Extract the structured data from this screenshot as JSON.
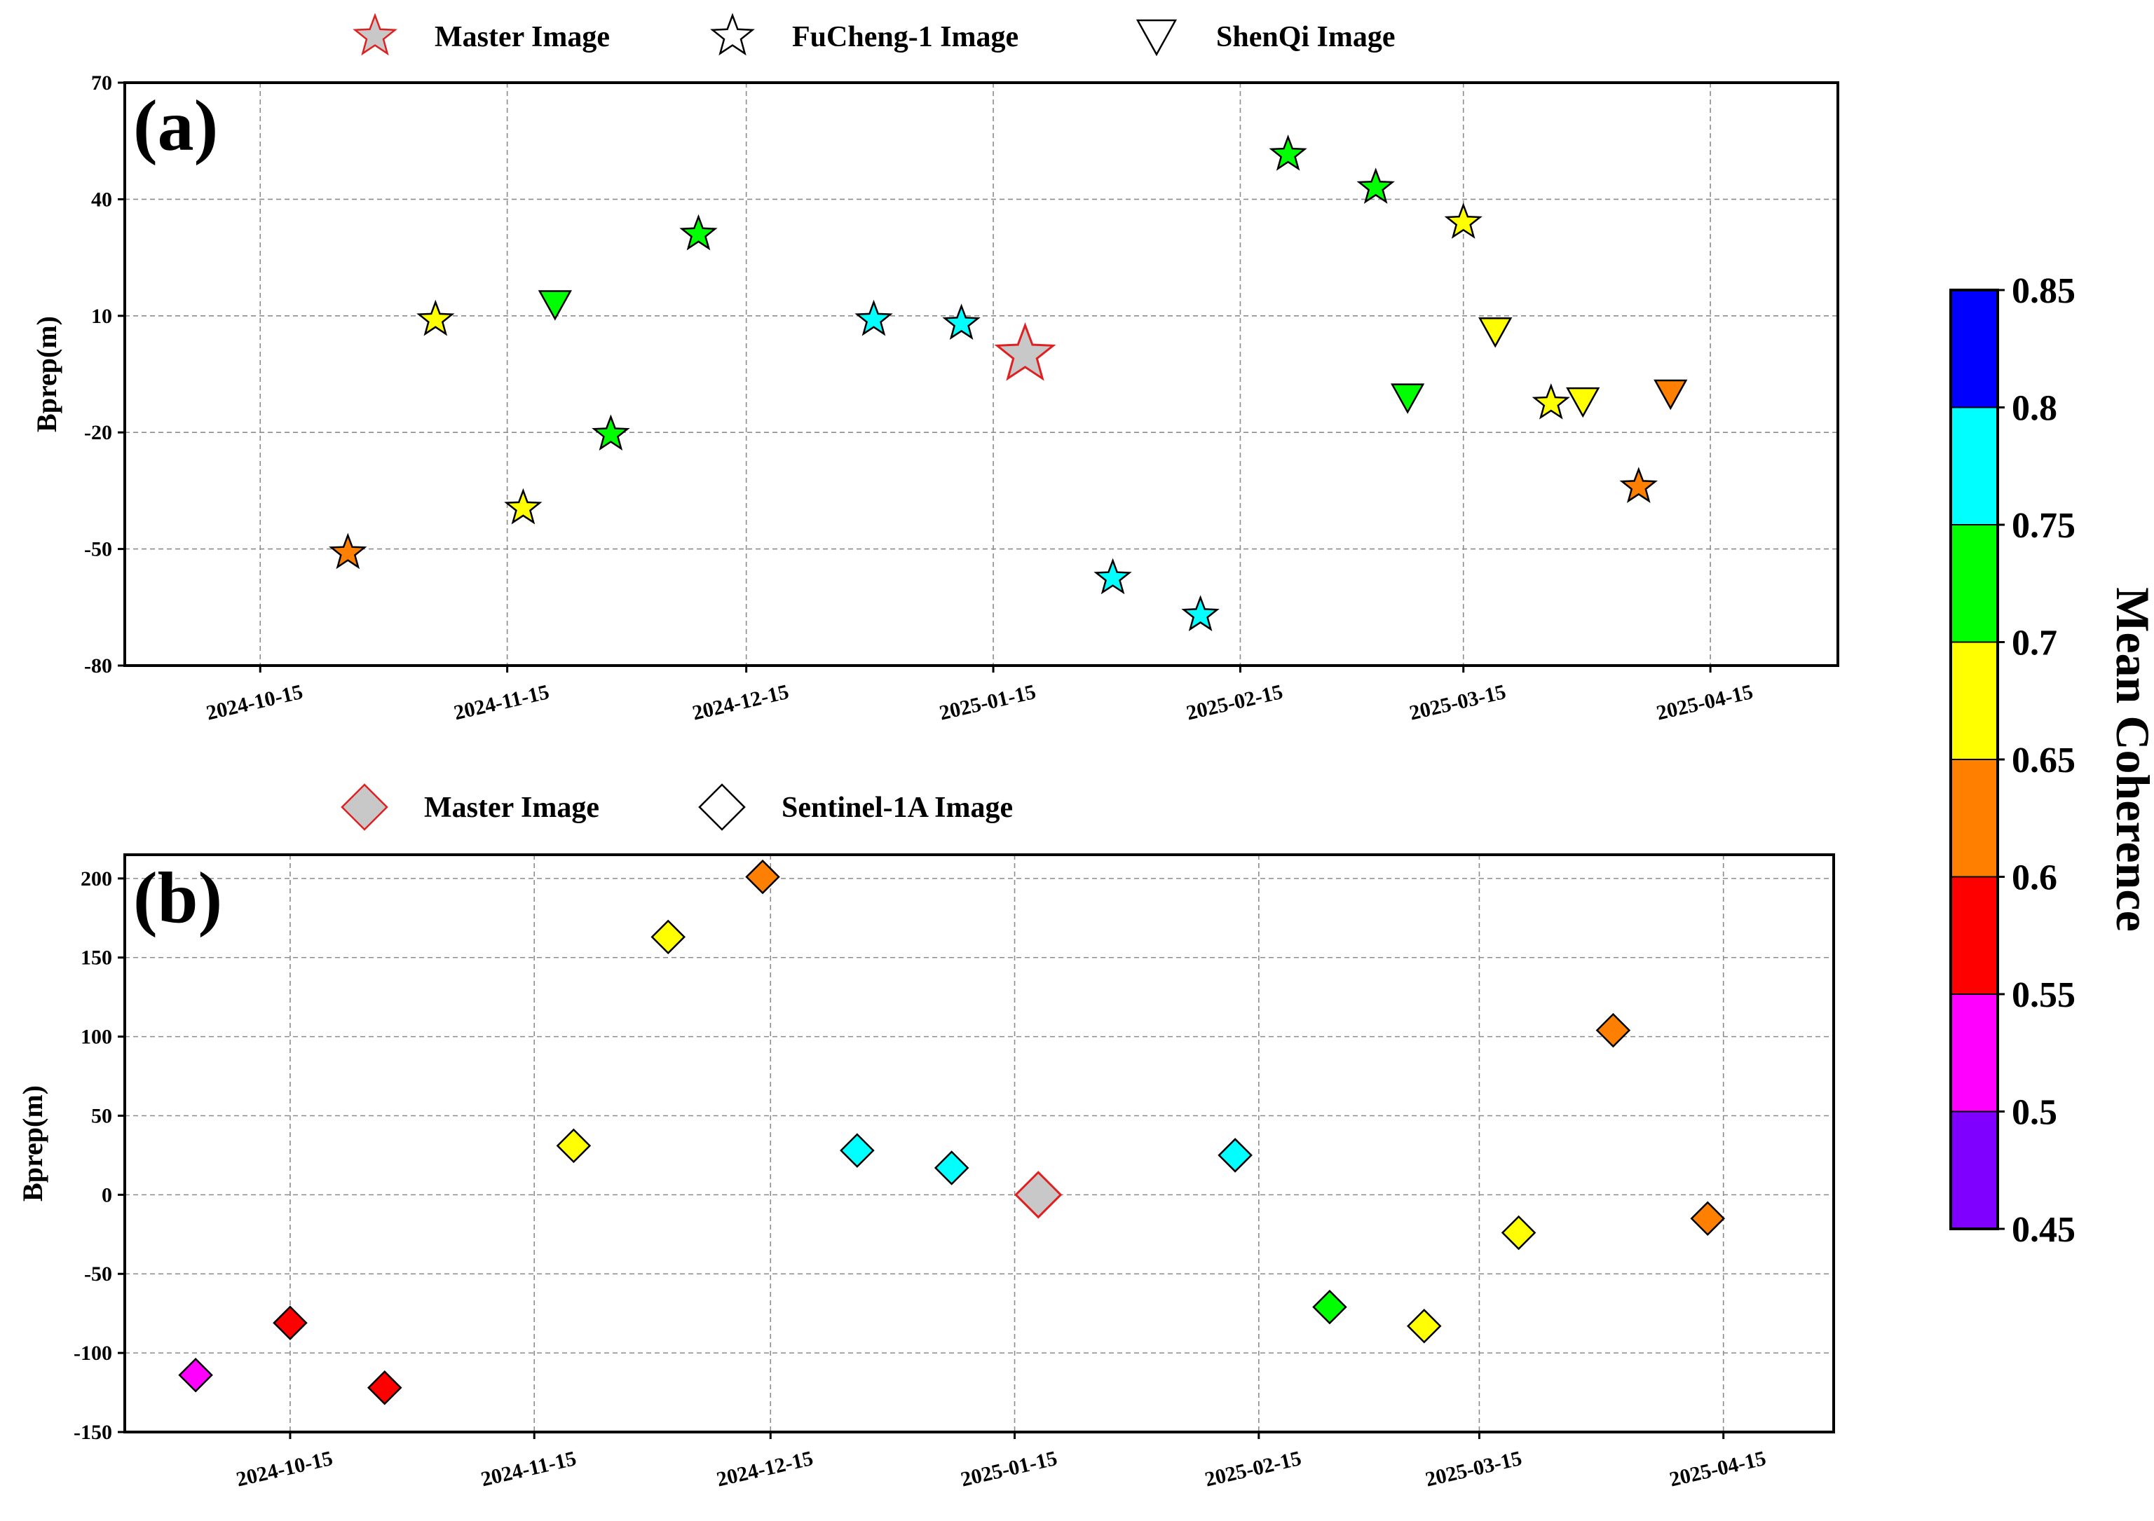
{
  "chart_data": [
    {
      "panel": "(a)",
      "type": "scatter",
      "ylabel": "Bprep(m)",
      "xlabel": "",
      "ylim": [
        -80,
        70
      ],
      "yticks": [
        -80,
        -50,
        -20,
        10,
        40,
        70
      ],
      "xlim": [
        "2024-09-28",
        "2025-05-01"
      ],
      "xticks": [
        "2024-10-15",
        "2024-11-15",
        "2024-12-15",
        "2025-01-15",
        "2025-02-15",
        "2025-03-15",
        "2025-04-15"
      ],
      "grid": true,
      "legend": [
        {
          "label": "Master Image",
          "marker": "star",
          "fill": "#c8c8c8",
          "stroke": "#e02020"
        },
        {
          "label": "FuCheng-1 Image",
          "marker": "star",
          "fill": "#ffffff",
          "stroke": "#000000"
        },
        {
          "label": "ShenQi Image",
          "marker": "triangle-down",
          "fill": "#ffffff",
          "stroke": "#000000"
        }
      ],
      "series": [
        {
          "name": "Master Image",
          "marker": "star",
          "points": [
            {
              "date": "2025-01-19",
              "y": 0,
              "coherence": null
            }
          ]
        },
        {
          "name": "FuCheng-1 Image",
          "marker": "star",
          "points": [
            {
              "date": "2024-10-26",
              "y": -51,
              "coherence": 0.63
            },
            {
              "date": "2024-11-06",
              "y": 9,
              "coherence": 0.68
            },
            {
              "date": "2024-11-17",
              "y": -39.5,
              "coherence": 0.68
            },
            {
              "date": "2024-11-28",
              "y": -20.5,
              "coherence": 0.73
            },
            {
              "date": "2024-12-09",
              "y": 31,
              "coherence": 0.73
            },
            {
              "date": "2024-12-31",
              "y": 9,
              "coherence": 0.78
            },
            {
              "date": "2025-01-11",
              "y": 8,
              "coherence": 0.78
            },
            {
              "date": "2025-01-30",
              "y": -57.5,
              "coherence": 0.78
            },
            {
              "date": "2025-02-10",
              "y": -67,
              "coherence": 0.78
            },
            {
              "date": "2025-02-21",
              "y": 51.5,
              "coherence": 0.73
            },
            {
              "date": "2025-03-04",
              "y": 43,
              "coherence": 0.73
            },
            {
              "date": "2025-03-15",
              "y": 34,
              "coherence": 0.68
            },
            {
              "date": "2025-03-26",
              "y": -12.5,
              "coherence": 0.68
            },
            {
              "date": "2025-04-06",
              "y": -34,
              "coherence": 0.63
            }
          ]
        },
        {
          "name": "ShenQi Image",
          "marker": "triangle-down",
          "points": [
            {
              "date": "2024-11-21",
              "y": 13,
              "coherence": 0.73
            },
            {
              "date": "2025-03-08",
              "y": -11,
              "coherence": 0.73
            },
            {
              "date": "2025-03-19",
              "y": 6,
              "coherence": 0.68
            },
            {
              "date": "2025-03-30",
              "y": -12,
              "coherence": 0.68
            },
            {
              "date": "2025-04-10",
              "y": -10,
              "coherence": 0.63
            }
          ]
        }
      ]
    },
    {
      "panel": "(b)",
      "type": "scatter",
      "ylabel": "Bprep(m)",
      "xlabel": "",
      "ylim": [
        -150,
        215
      ],
      "yticks": [
        -150,
        -100,
        -50,
        0,
        50,
        100,
        150,
        200
      ],
      "xlim": [
        "2024-09-24",
        "2025-04-29"
      ],
      "xticks": [
        "2024-10-15",
        "2024-11-15",
        "2024-12-15",
        "2025-01-15",
        "2025-02-15",
        "2025-03-15",
        "2025-04-15"
      ],
      "grid": true,
      "legend": [
        {
          "label": "Master Image",
          "marker": "diamond",
          "fill": "#c8c8c8",
          "stroke": "#e02020"
        },
        {
          "label": "Sentinel-1A Image",
          "marker": "diamond",
          "fill": "#ffffff",
          "stroke": "#000000"
        }
      ],
      "series": [
        {
          "name": "Master Image",
          "marker": "diamond",
          "points": [
            {
              "date": "2025-01-18",
              "y": 0,
              "coherence": null
            }
          ]
        },
        {
          "name": "Sentinel-1A Image",
          "marker": "diamond",
          "points": [
            {
              "date": "2024-10-03",
              "y": -114,
              "coherence": 0.53
            },
            {
              "date": "2024-10-15",
              "y": -81,
              "coherence": 0.58
            },
            {
              "date": "2024-10-27",
              "y": -122,
              "coherence": 0.58
            },
            {
              "date": "2024-11-20",
              "y": 31,
              "coherence": 0.68
            },
            {
              "date": "2024-12-02",
              "y": 163,
              "coherence": 0.68
            },
            {
              "date": "2024-12-14",
              "y": 201,
              "coherence": 0.63
            },
            {
              "date": "2024-12-26",
              "y": 28,
              "coherence": 0.78
            },
            {
              "date": "2025-01-07",
              "y": 17,
              "coherence": 0.78
            },
            {
              "date": "2025-02-12",
              "y": 25,
              "coherence": 0.78
            },
            {
              "date": "2025-02-24",
              "y": -71,
              "coherence": 0.73
            },
            {
              "date": "2025-03-08",
              "y": -83,
              "coherence": 0.68
            },
            {
              "date": "2025-03-20",
              "y": -24,
              "coherence": 0.68
            },
            {
              "date": "2025-04-01",
              "y": 104,
              "coherence": 0.63
            },
            {
              "date": "2025-04-13",
              "y": -15,
              "coherence": 0.63
            }
          ]
        }
      ]
    }
  ],
  "colorbar": {
    "label": "Mean Coherence",
    "ticks": [
      "0.45",
      "0.5",
      "0.55",
      "0.6",
      "0.65",
      "0.7",
      "0.75",
      "0.8",
      "0.85"
    ],
    "bins": [
      {
        "from": 0.45,
        "to": 0.5,
        "color": "#8000ff"
      },
      {
        "from": 0.5,
        "to": 0.55,
        "color": "#ff00ff"
      },
      {
        "from": 0.55,
        "to": 0.6,
        "color": "#ff0000"
      },
      {
        "from": 0.6,
        "to": 0.65,
        "color": "#ff8000"
      },
      {
        "from": 0.65,
        "to": 0.7,
        "color": "#ffff00"
      },
      {
        "from": 0.7,
        "to": 0.75,
        "color": "#00ff00"
      },
      {
        "from": 0.75,
        "to": 0.8,
        "color": "#00ffff"
      },
      {
        "from": 0.8,
        "to": 0.85,
        "color": "#0000ff"
      }
    ]
  },
  "style": {
    "master_fill": "#c8c8c8",
    "master_stroke": "#e02020",
    "grid_color": "#8c8c8c"
  }
}
